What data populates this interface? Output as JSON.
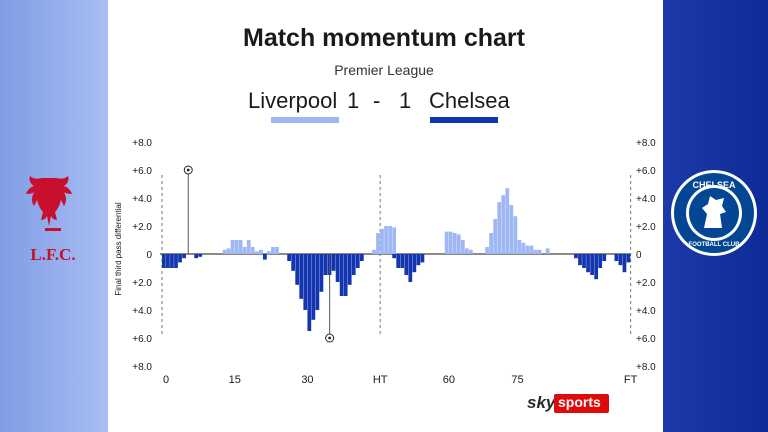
{
  "title": "Match momentum chart",
  "subtitle": "Premier League",
  "score": {
    "home_team": "Liverpool",
    "home_goals": "1",
    "separator": "-",
    "away_goals": "1",
    "away_team": "Chelsea"
  },
  "colors": {
    "home": "#9fb7f5",
    "away": "#1435b0",
    "left_panel": "#95afef",
    "right_panel": "#1234a0"
  },
  "crests": {
    "left": {
      "icon": "liverpool-crest-icon",
      "text": "L.F.C."
    },
    "right": {
      "icon": "chelsea-crest-icon",
      "text_top": "CHELSEA",
      "text_bottom": "FOOTBALL CLUB"
    }
  },
  "branding": {
    "sky": "sky",
    "sports": "sports"
  },
  "chart_data": {
    "type": "bar",
    "ylabel": "Final third pass differential",
    "ylim": [
      -8,
      8
    ],
    "y_ticks": [
      "+8.0",
      "+6.0",
      "+4.0",
      "+2.0",
      "0",
      "+2.0",
      "+4.0",
      "+6.0",
      "+8.0"
    ],
    "x_ticks": [
      "0",
      "15",
      "30",
      "HT",
      "60",
      "75",
      "FT"
    ],
    "halftime_marker": "HT",
    "goal_markers": [
      {
        "team": "Liverpool",
        "minute": 5,
        "icon": "football-icon"
      },
      {
        "team": "Chelsea",
        "minute": 34,
        "icon": "football-icon"
      }
    ],
    "series": [
      {
        "name": "Liverpool",
        "values": [
          0,
          0,
          0,
          0,
          0,
          0,
          0,
          0,
          0,
          0,
          0,
          0,
          0,
          0,
          0,
          0.3,
          0.4,
          1.0,
          1.0,
          1.0,
          0.5,
          1.0,
          0.5,
          0.2,
          0.3,
          0,
          0.2,
          0.5,
          0.5,
          0,
          0,
          0,
          0,
          0,
          0,
          0,
          0,
          0,
          0,
          0,
          0,
          0,
          0,
          0,
          0,
          0,
          0,
          0,
          0,
          0,
          0,
          0,
          0.3,
          1.5,
          1.8,
          2.0,
          2.0,
          1.9,
          0,
          0,
          0,
          0,
          0,
          0,
          0,
          0,
          0,
          0,
          0,
          0,
          1.6,
          1.6,
          1.5,
          1.4,
          1.0,
          0.4,
          0.3,
          0,
          0,
          0,
          0.5,
          1.5,
          2.5,
          3.7,
          4.2,
          4.7,
          3.5,
          2.7,
          1.0,
          0.8,
          0.6,
          0.6,
          0.3,
          0.3,
          0,
          0.4,
          0,
          0,
          0,
          0,
          0,
          0,
          0,
          0,
          0,
          0,
          0,
          0,
          0,
          0,
          0,
          0,
          0,
          0,
          0,
          0
        ]
      },
      {
        "name": "Chelsea",
        "values": [
          1.0,
          1.0,
          1.0,
          1.0,
          0.6,
          0.3,
          0,
          0,
          0.3,
          0.2,
          0,
          0,
          0,
          0,
          0,
          0,
          0,
          0,
          0,
          0,
          0,
          0,
          0,
          0,
          0,
          0.4,
          0,
          0,
          0,
          0,
          0,
          0.5,
          1.2,
          2.2,
          3.2,
          4.0,
          5.5,
          4.7,
          4.0,
          2.7,
          1.5,
          1.5,
          1.2,
          2.0,
          3.0,
          3.0,
          2.2,
          1.5,
          1.0,
          0.5,
          0,
          0,
          0,
          0,
          0,
          0,
          0,
          0.3,
          1.0,
          1.0,
          1.5,
          2.0,
          1.3,
          0.8,
          0.6,
          0,
          0,
          0,
          0,
          0,
          0,
          0,
          0,
          0,
          0,
          0,
          0,
          0,
          0,
          0,
          0,
          0,
          0,
          0,
          0,
          0,
          0,
          0,
          0,
          0,
          0,
          0,
          0,
          0,
          0,
          0,
          0,
          0,
          0,
          0,
          0,
          0,
          0.3,
          0.8,
          1.0,
          1.3,
          1.5,
          1.8,
          1.0,
          0.5,
          0,
          0,
          0.5,
          0.8,
          1.3,
          0.6,
          0.3,
          0
        ]
      }
    ]
  }
}
